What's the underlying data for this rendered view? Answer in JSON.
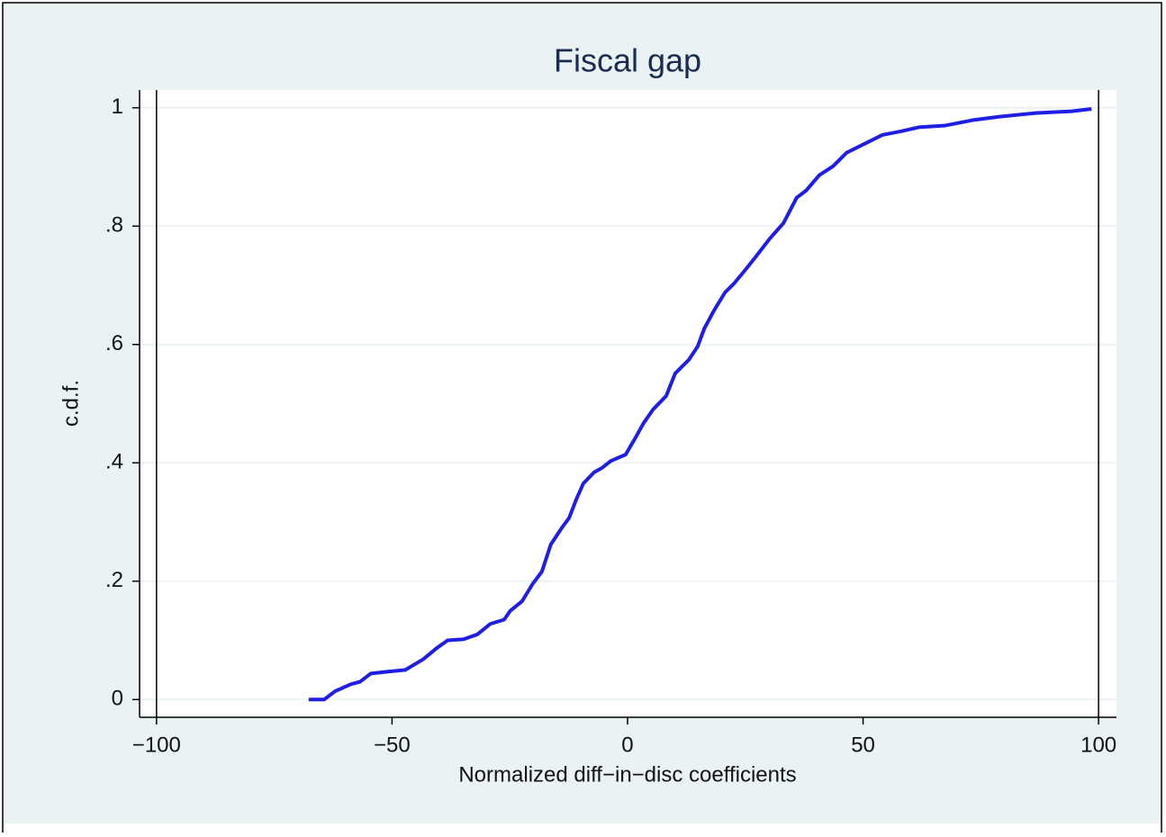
{
  "chart_data": {
    "type": "line",
    "title": "Fiscal gap",
    "x_label": "Normalized diff−in−disc coefficients",
    "y_label": "c.d.f.",
    "x": [
      -67.7,
      -64.4,
      -62.1,
      -58.7,
      -56.8,
      -54.5,
      -51.1,
      -47.2,
      -43.4,
      -40.5,
      -38.2,
      -34.8,
      -31.9,
      -29.1,
      -26.2,
      -24.9,
      -22.4,
      -20.1,
      -18.2,
      -16.3,
      -13.8,
      -12.4,
      -10.9,
      -9.4,
      -7.1,
      -5.5,
      -3.6,
      -0.4,
      1.5,
      3.4,
      5.4,
      8.2,
      10.1,
      13.0,
      14.9,
      16.3,
      18.4,
      20.7,
      22.6,
      25.0,
      27.3,
      30.2,
      33.1,
      35.9,
      37.9,
      40.7,
      43.6,
      46.5,
      50.3,
      54.1,
      57.9,
      61.8,
      67.5,
      73.2,
      79.0,
      86.6,
      94.3,
      98.5
    ],
    "series": [
      {
        "color": "#1e1ee6",
        "values": [
          0,
          0,
          0.014,
          0.026,
          0.03,
          0.044,
          0.047,
          0.05,
          0.068,
          0.087,
          0.1,
          0.102,
          0.11,
          0.128,
          0.135,
          0.15,
          0.166,
          0.196,
          0.216,
          0.262,
          0.292,
          0.307,
          0.338,
          0.365,
          0.384,
          0.391,
          0.403,
          0.414,
          0.44,
          0.467,
          0.49,
          0.513,
          0.551,
          0.574,
          0.597,
          0.627,
          0.658,
          0.688,
          0.703,
          0.726,
          0.749,
          0.779,
          0.805,
          0.848,
          0.86,
          0.886,
          0.901,
          0.924,
          0.939,
          0.954,
          0.96,
          0.967,
          0.97,
          0.979,
          0.985,
          0.991,
          0.994,
          0.998
        ]
      }
    ],
    "xlim": [
      -103.6,
      103.8
    ],
    "ylim": [
      -0.03,
      1.03
    ],
    "xticks": [
      {
        "value": -100,
        "label": "−100"
      },
      {
        "value": -50,
        "label": "−50"
      },
      0,
      50,
      100
    ],
    "yticks": [
      0,
      {
        "value": 0.2,
        "label": ".2"
      },
      {
        "value": 0.4,
        "label": ".4"
      },
      {
        "value": 0.6,
        "label": ".6"
      },
      {
        "value": 0.8,
        "label": ".8"
      },
      1
    ],
    "xlines": [
      -100,
      100
    ],
    "grid": true
  }
}
